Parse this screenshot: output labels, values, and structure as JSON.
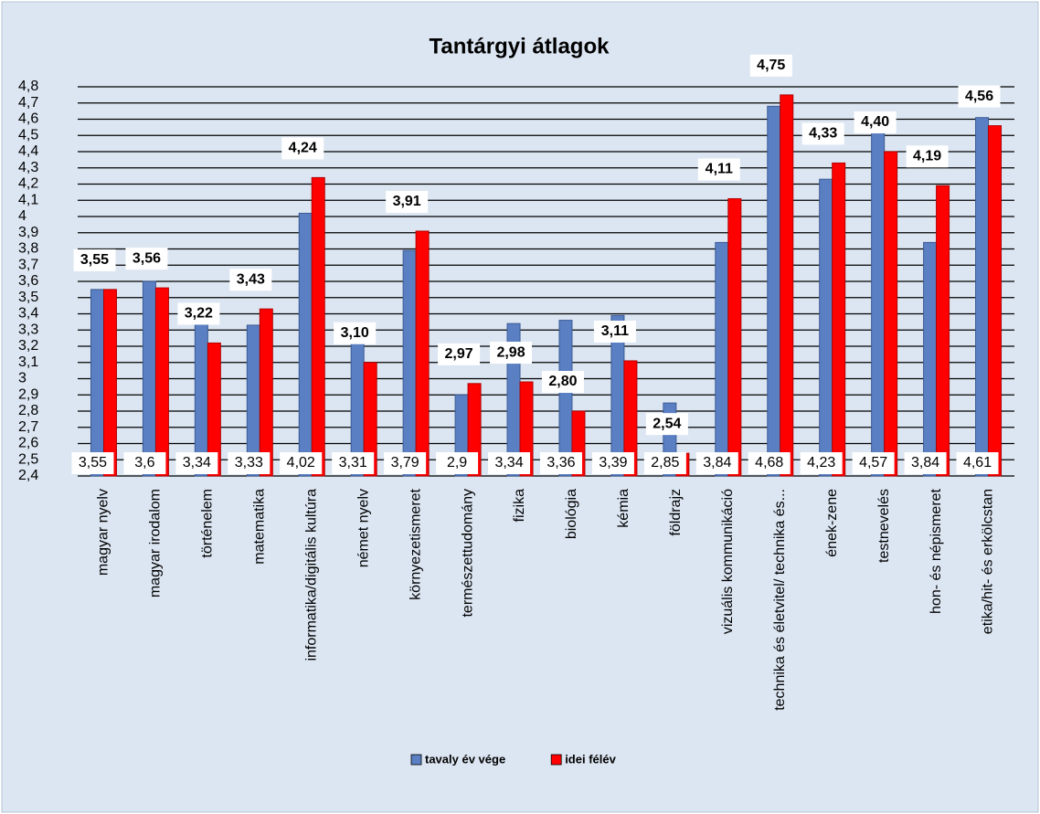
{
  "chart_data": {
    "type": "bar",
    "title": "Tantárgyi átlagok",
    "categories": [
      "magyar nyelv",
      "magyar irodalom",
      "történelem",
      "matematika",
      "informatika/digitális kultúra",
      "német nyelv",
      "környezetismeret",
      "természettudomány",
      "fizika",
      "biológia",
      "kémia",
      "földrajz",
      "vizuális kommunikáció",
      "technika és életvitel/ technika és...",
      "ének-zene",
      "testnevelés",
      "hon- és népismeret",
      "etika/hit- és erkölcstan"
    ],
    "series": [
      {
        "name": "tavaly év vége",
        "color": "#5a7fc2",
        "values": [
          3.55,
          3.6,
          3.34,
          3.33,
          4.02,
          3.31,
          3.79,
          2.9,
          3.34,
          3.36,
          3.39,
          2.85,
          3.84,
          4.68,
          4.23,
          4.57,
          3.84,
          4.61
        ],
        "value_labels": [
          "3,55",
          "3,6",
          "3,34",
          "3,33",
          "4,02",
          "3,31",
          "3,79",
          "2,9",
          "3,34",
          "3,36",
          "3,39",
          "2,85",
          "3,84",
          "4,68",
          "4,23",
          "4,57",
          "3,84",
          "4,61"
        ]
      },
      {
        "name": "idei félév",
        "color": "#ff0000",
        "values": [
          3.55,
          3.56,
          3.22,
          3.43,
          4.24,
          3.1,
          3.91,
          2.97,
          2.98,
          2.8,
          3.11,
          2.54,
          4.11,
          4.75,
          4.33,
          4.4,
          4.19,
          4.56
        ],
        "value_labels": [
          "3,55",
          "3,56",
          "3,22",
          "3,43",
          "4,24",
          "3,10",
          "3,91",
          "2,97",
          "2,98",
          "2,80",
          "3,11",
          "2,54",
          "4,11",
          "4,75",
          "4,33",
          "4,40",
          "4,19",
          "4,56"
        ]
      }
    ],
    "ylim": [
      2.4,
      4.8
    ],
    "yticks": [
      {
        "value": 2.4,
        "label": "2,4"
      },
      {
        "value": 2.5,
        "label": "2,5"
      },
      {
        "value": 2.6,
        "label": "2,6"
      },
      {
        "value": 2.7,
        "label": "2,7"
      },
      {
        "value": 2.8,
        "label": "2,8"
      },
      {
        "value": 2.9,
        "label": "2,9"
      },
      3,
      {
        "value": 3.1,
        "label": "3,1"
      },
      {
        "value": 3.2,
        "label": "3,2"
      },
      {
        "value": 3.3,
        "label": "3,3"
      },
      {
        "value": 3.4,
        "label": "3,4"
      },
      {
        "value": 3.5,
        "label": "3,5"
      },
      {
        "value": 3.6,
        "label": "3,6"
      },
      {
        "value": 3.7,
        "label": "3,7"
      },
      {
        "value": 3.8,
        "label": "3,8"
      },
      {
        "value": 3.9,
        "label": "3,9"
      },
      4,
      {
        "value": 4.1,
        "label": "4,1"
      },
      {
        "value": 4.2,
        "label": "4,2"
      },
      {
        "value": 4.3,
        "label": "4,3"
      },
      {
        "value": 4.4,
        "label": "4,4"
      },
      {
        "value": 4.5,
        "label": "4,5"
      },
      {
        "value": 4.6,
        "label": "4,6"
      },
      {
        "value": 4.7,
        "label": "4,7"
      },
      {
        "value": 4.8,
        "label": "4,8"
      }
    ],
    "grid": true,
    "legend": "bottom"
  }
}
